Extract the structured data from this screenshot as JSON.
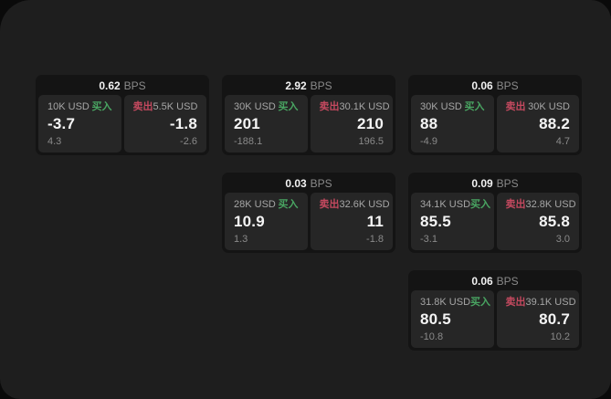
{
  "colors": {
    "buy_green": "#49a562",
    "sell_red": "#c4495f",
    "panel_bg": "#1e1e1e",
    "card_bg": "#141414",
    "cell_bg": "#262626"
  },
  "cards": [
    {
      "row": 1,
      "col": 1,
      "bps_value": "0.62",
      "bps_unit": "BPS",
      "buy": {
        "size": "10K USD",
        "action": "买入",
        "price": "-3.7",
        "delta": "4.3"
      },
      "sell": {
        "action": "卖出",
        "size": "5.5K USD",
        "price": "-1.8",
        "delta": "-2.6"
      }
    },
    {
      "row": 1,
      "col": 2,
      "bps_value": "2.92",
      "bps_unit": "BPS",
      "buy": {
        "size": "30K USD",
        "action": "买入",
        "price": "201",
        "delta": "-188.1"
      },
      "sell": {
        "action": "卖出",
        "size": "30.1K USD",
        "price": "210",
        "delta": "196.5"
      }
    },
    {
      "row": 1,
      "col": 3,
      "bps_value": "0.06",
      "bps_unit": "BPS",
      "buy": {
        "size": "30K USD",
        "action": "买入",
        "price": "88",
        "delta": "-4.9"
      },
      "sell": {
        "action": "卖出",
        "size": "30K USD",
        "price": "88.2",
        "delta": "4.7"
      }
    },
    {
      "row": 2,
      "col": 2,
      "bps_value": "0.03",
      "bps_unit": "BPS",
      "buy": {
        "size": "28K USD",
        "action": "买入",
        "price": "10.9",
        "delta": "1.3"
      },
      "sell": {
        "action": "卖出",
        "size": "32.6K USD",
        "price": "11",
        "delta": "-1.8"
      }
    },
    {
      "row": 2,
      "col": 3,
      "bps_value": "0.09",
      "bps_unit": "BPS",
      "buy": {
        "size": "34.1K USD",
        "action": "买入",
        "price": "85.5",
        "delta": "-3.1"
      },
      "sell": {
        "action": "卖出",
        "size": "32.8K USD",
        "price": "85.8",
        "delta": "3.0"
      }
    },
    {
      "row": 3,
      "col": 3,
      "bps_value": "0.06",
      "bps_unit": "BPS",
      "buy": {
        "size": "31.8K USD",
        "action": "买入",
        "price": "80.5",
        "delta": "-10.8"
      },
      "sell": {
        "action": "卖出",
        "size": "39.1K USD",
        "price": "80.7",
        "delta": "10.2"
      }
    }
  ]
}
